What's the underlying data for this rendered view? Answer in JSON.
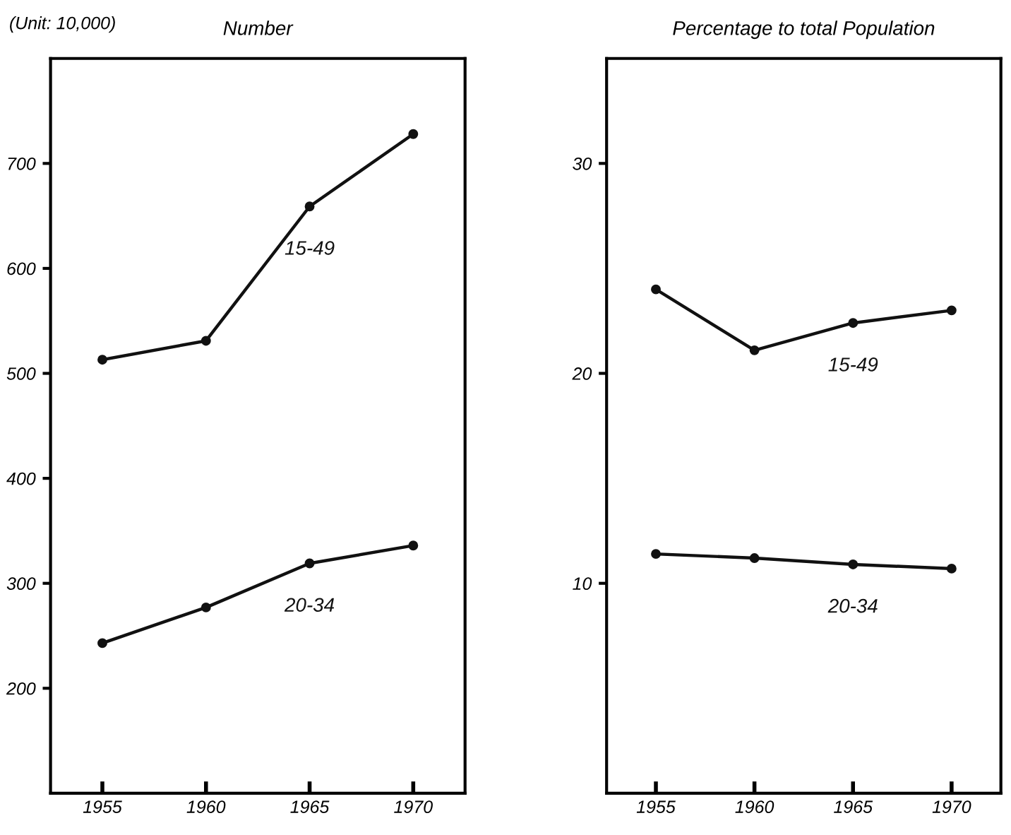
{
  "chart_data": [
    {
      "type": "line",
      "title": "Number",
      "ylabel": "(Unit: 10,000)",
      "x": [
        1955,
        1960,
        1965,
        1970
      ],
      "series": [
        {
          "name": "15-49",
          "color": "#111111",
          "values": [
            513,
            531,
            659,
            728
          ]
        },
        {
          "name": "20-34",
          "color": "#111111",
          "values": [
            243,
            277,
            319,
            336
          ]
        }
      ],
      "xlim": [
        1952.5,
        1972.5
      ],
      "ylim": [
        100,
        800
      ],
      "xticks": [
        1955,
        1960,
        1965,
        1970
      ],
      "yticks": [
        200,
        300,
        400,
        500,
        600,
        700
      ],
      "marker": "circle",
      "line_style": "solid"
    },
    {
      "type": "line",
      "title": "Percentage to total Population",
      "x": [
        1955,
        1960,
        1965,
        1970
      ],
      "series": [
        {
          "name": "15-49",
          "color": "#111111",
          "values": [
            24.0,
            21.1,
            22.4,
            23.0
          ]
        },
        {
          "name": "20-34",
          "color": "#111111",
          "values": [
            11.4,
            11.2,
            10.9,
            10.7
          ]
        }
      ],
      "xlim": [
        1952.5,
        1972.5
      ],
      "ylim": [
        0,
        35
      ],
      "xticks": [
        1955,
        1960,
        1965,
        1970
      ],
      "yticks": [
        10,
        20,
        30
      ],
      "marker": "circle",
      "line_style": "solid"
    }
  ]
}
